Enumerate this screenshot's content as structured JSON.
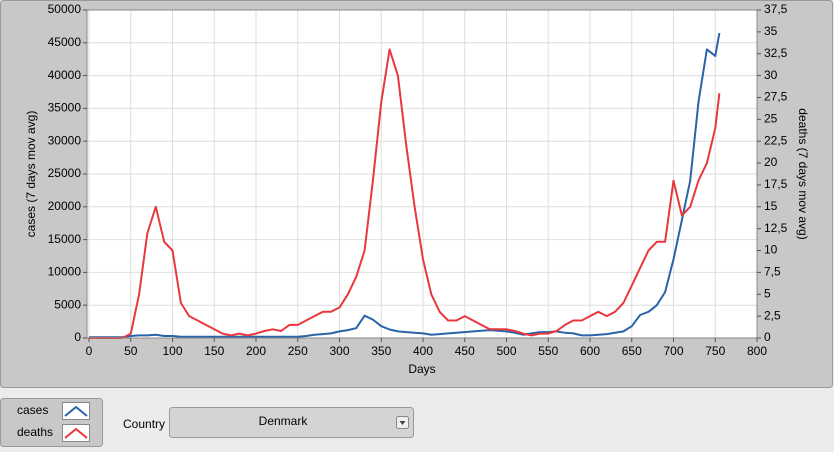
{
  "chart_data": {
    "type": "line",
    "x_label": "Days",
    "y_label": "cases  (7 days mov avg)",
    "y2_label": "deaths  (7 days mov avg)",
    "x": [
      0,
      10,
      20,
      30,
      40,
      50,
      60,
      70,
      80,
      90,
      100,
      110,
      120,
      130,
      140,
      150,
      160,
      170,
      180,
      190,
      200,
      210,
      220,
      230,
      240,
      250,
      260,
      270,
      280,
      290,
      300,
      310,
      320,
      330,
      340,
      350,
      360,
      370,
      380,
      390,
      400,
      410,
      420,
      430,
      440,
      450,
      460,
      470,
      480,
      490,
      500,
      510,
      520,
      530,
      540,
      550,
      560,
      570,
      580,
      590,
      600,
      610,
      620,
      630,
      640,
      650,
      660,
      670,
      680,
      690,
      700,
      710,
      720,
      730,
      740,
      750,
      755
    ],
    "series": [
      {
        "name": "cases",
        "color": "#2a64a8",
        "axis": "y",
        "values": [
          100,
          100,
          100,
          100,
          100,
          300,
          400,
          400,
          500,
          300,
          300,
          200,
          200,
          200,
          200,
          200,
          200,
          200,
          200,
          200,
          200,
          200,
          200,
          200,
          200,
          200,
          300,
          500,
          600,
          700,
          1000,
          1200,
          1500,
          3400,
          2800,
          1800,
          1300,
          1000,
          900,
          800,
          700,
          500,
          600,
          700,
          800,
          900,
          1000,
          1100,
          1200,
          1100,
          1000,
          800,
          500,
          700,
          900,
          900,
          1000,
          800,
          700,
          400,
          400,
          500,
          600,
          800,
          1000,
          1800,
          3500,
          4000,
          5000,
          7000,
          12000,
          18000,
          24000,
          36000,
          44000,
          43000,
          46500
        ]
      },
      {
        "name": "deaths",
        "color": "#e8383d",
        "axis": "y2",
        "values": [
          0,
          0,
          0,
          0,
          0,
          0.5,
          5,
          12,
          15,
          11,
          10,
          4,
          2.5,
          2,
          1.5,
          1,
          0.5,
          0.3,
          0.5,
          0.3,
          0.5,
          0.8,
          1,
          0.8,
          1.5,
          1.5,
          2,
          2.5,
          3,
          3,
          3.5,
          5,
          7,
          10,
          18,
          27,
          33,
          30,
          22,
          15,
          9,
          5,
          3,
          2,
          2,
          2.5,
          2,
          1.5,
          1,
          1,
          1,
          0.8,
          0.5,
          0.3,
          0.5,
          0.5,
          0.8,
          1.5,
          2,
          2,
          2.5,
          3,
          2.5,
          3,
          4,
          6,
          8,
          10,
          11,
          11,
          18,
          14,
          15,
          18,
          20,
          24,
          28
        ]
      }
    ],
    "xlim": [
      0,
      800
    ],
    "xticks": [
      0,
      50,
      100,
      150,
      200,
      250,
      300,
      350,
      400,
      450,
      500,
      550,
      600,
      650,
      700,
      750,
      800
    ],
    "ylim": [
      0,
      50000
    ],
    "yticks": [
      0,
      5000,
      10000,
      15000,
      20000,
      25000,
      30000,
      35000,
      40000,
      45000,
      50000
    ],
    "y2lim": [
      0,
      37.5
    ],
    "y2ticks": [
      0,
      {
        "value": 2.5,
        "label": "2,5"
      },
      5,
      {
        "value": 7.5,
        "label": "7,5"
      },
      10,
      {
        "value": 12.5,
        "label": "12,5"
      },
      15,
      {
        "value": 17.5,
        "label": "17,5"
      },
      20,
      {
        "value": 22.5,
        "label": "22,5"
      },
      25,
      {
        "value": 27.5,
        "label": "27,5"
      },
      30,
      {
        "value": 32.5,
        "label": "32,5"
      },
      35,
      {
        "value": 37.5,
        "label": "37,5"
      }
    ],
    "grid": true
  },
  "controls": {
    "country_label": "Country",
    "country_value": "Denmark"
  }
}
